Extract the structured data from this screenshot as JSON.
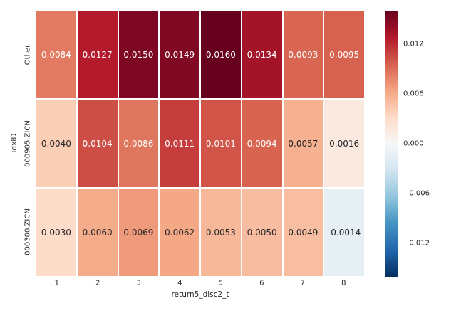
{
  "chart_data": {
    "type": "heatmap",
    "title": "",
    "xlabel": "return5_disc2_t",
    "ylabel": "idxID",
    "columns": [
      "1",
      "2",
      "3",
      "4",
      "5",
      "6",
      "7",
      "8"
    ],
    "rows": [
      "Other",
      "000905.ZICN",
      "000300.ZICN"
    ],
    "values": [
      [
        0.0084,
        0.0127,
        0.015,
        0.0149,
        0.016,
        0.0134,
        0.0093,
        0.0095
      ],
      [
        0.004,
        0.0104,
        0.0086,
        0.0111,
        0.0101,
        0.0094,
        0.0057,
        0.0016
      ],
      [
        0.003,
        0.006,
        0.0069,
        0.0062,
        0.0053,
        0.005,
        0.0049,
        -0.0014
      ]
    ],
    "value_decimals": 4,
    "grid_line_color": "#ffffff",
    "background_color": "#ffffff",
    "colormap": {
      "name": "RdBu_r",
      "vmin": -0.016,
      "vmax": 0.016,
      "stops": [
        "#053061",
        "#2166ac",
        "#4393c3",
        "#92c5de",
        "#d1e5f0",
        "#f7f7f7",
        "#fddbc7",
        "#f4a582",
        "#d6604d",
        "#b2182b",
        "#67001f"
      ]
    },
    "annotation_colors": {
      "light": "#ffffff",
      "dark": "#262626"
    },
    "colorbar": {
      "position": "right",
      "ticks": [
        {
          "label": "0.012",
          "value": 0.012
        },
        {
          "label": "0.006",
          "value": 0.006
        },
        {
          "label": "0.000",
          "value": 0.0
        },
        {
          "label": "−0.006",
          "value": -0.006
        },
        {
          "label": "−0.012",
          "value": -0.012
        }
      ]
    }
  }
}
